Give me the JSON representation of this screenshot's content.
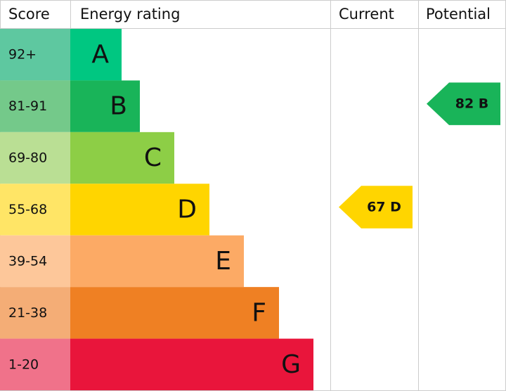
{
  "header": {
    "score": "Score",
    "rating": "Energy rating",
    "current": "Current",
    "potential": "Potential"
  },
  "bands": [
    {
      "score": "92+",
      "letter": "A",
      "color": "#00c781",
      "score_color": "#5ec8a0"
    },
    {
      "score": "81-91",
      "letter": "B",
      "color": "#19b459",
      "score_color": "#74c98a"
    },
    {
      "score": "69-80",
      "letter": "C",
      "color": "#8dce46",
      "score_color": "#badf94"
    },
    {
      "score": "55-68",
      "letter": "D",
      "color": "#ffd500",
      "score_color": "#ffe566"
    },
    {
      "score": "39-54",
      "letter": "E",
      "color": "#fcaa65",
      "score_color": "#fdc79a"
    },
    {
      "score": "21-38",
      "letter": "F",
      "color": "#ef8023",
      "score_color": "#f4ad76"
    },
    {
      "score": "1-20",
      "letter": "G",
      "color": "#e9153b",
      "score_color": "#f0728a"
    }
  ],
  "current": {
    "label": "67 D",
    "color": "#ffd500"
  },
  "potential": {
    "label": "82 B",
    "color": "#19b459"
  }
}
